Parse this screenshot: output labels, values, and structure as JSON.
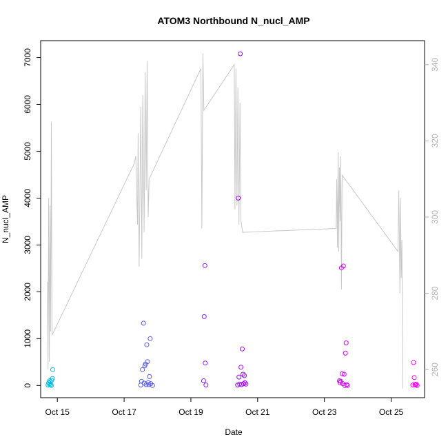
{
  "chart_data": {
    "type": "scatter",
    "title": "ATOM3 Northbound N_nucl_AMP",
    "xlabel": "Date",
    "ylabel": "N_nucl_AMP",
    "xlim": [
      14.5,
      26.0
    ],
    "ylim": [
      -260,
      7360
    ],
    "y_ticks": [
      0,
      1000,
      2000,
      3000,
      4000,
      5000,
      6000,
      7000
    ],
    "x_ticks": [
      {
        "label": "Oct 15",
        "value": 15.0
      },
      {
        "label": "Oct 17",
        "value": 17.0
      },
      {
        "label": "Oct 19",
        "value": 19.0
      },
      {
        "label": "Oct 21",
        "value": 21.0
      },
      {
        "label": "Oct 23",
        "value": 23.0
      },
      {
        "label": "Oct 25",
        "value": 25.0
      }
    ],
    "y2_ticks": [
      260,
      280,
      300,
      320,
      340
    ],
    "y2lim": [
      252.6,
      346.3
    ],
    "grid": false,
    "point_color_scale": [
      "#00bfe8",
      "#9a00ff",
      "#ff00ff"
    ],
    "line_color": "#c8c8c8",
    "points": [
      {
        "x": 14.72,
        "y": 10
      },
      {
        "x": 14.74,
        "y": 60
      },
      {
        "x": 14.76,
        "y": 30
      },
      {
        "x": 14.77,
        "y": 100
      },
      {
        "x": 14.79,
        "y": 80
      },
      {
        "x": 14.8,
        "y": 20
      },
      {
        "x": 14.82,
        "y": 0
      },
      {
        "x": 14.83,
        "y": 110
      },
      {
        "x": 14.85,
        "y": 150
      },
      {
        "x": 14.86,
        "y": 340
      },
      {
        "x": 17.5,
        "y": 10
      },
      {
        "x": 17.52,
        "y": 90
      },
      {
        "x": 17.55,
        "y": 340
      },
      {
        "x": 17.58,
        "y": 1330
      },
      {
        "x": 17.6,
        "y": 50
      },
      {
        "x": 17.62,
        "y": 420
      },
      {
        "x": 17.64,
        "y": 460
      },
      {
        "x": 17.66,
        "y": 20
      },
      {
        "x": 17.68,
        "y": 870
      },
      {
        "x": 17.7,
        "y": 510
      },
      {
        "x": 17.72,
        "y": 60
      },
      {
        "x": 17.74,
        "y": 20
      },
      {
        "x": 17.76,
        "y": 190
      },
      {
        "x": 17.78,
        "y": 1000
      },
      {
        "x": 17.8,
        "y": 40
      },
      {
        "x": 17.85,
        "y": 0
      },
      {
        "x": 19.38,
        "y": 100
      },
      {
        "x": 19.4,
        "y": 1470
      },
      {
        "x": 19.42,
        "y": 2560
      },
      {
        "x": 19.43,
        "y": 480
      },
      {
        "x": 19.45,
        "y": 10
      },
      {
        "x": 20.4,
        "y": 10
      },
      {
        "x": 20.42,
        "y": 4000
      },
      {
        "x": 20.44,
        "y": 180
      },
      {
        "x": 20.46,
        "y": 30
      },
      {
        "x": 20.48,
        "y": 7080
      },
      {
        "x": 20.5,
        "y": 390
      },
      {
        "x": 20.52,
        "y": 20
      },
      {
        "x": 20.54,
        "y": 780
      },
      {
        "x": 20.56,
        "y": 240
      },
      {
        "x": 20.58,
        "y": 40
      },
      {
        "x": 20.6,
        "y": 210
      },
      {
        "x": 20.62,
        "y": 60
      },
      {
        "x": 20.65,
        "y": 30
      },
      {
        "x": 23.45,
        "y": 100
      },
      {
        "x": 23.47,
        "y": 60
      },
      {
        "x": 23.49,
        "y": 90
      },
      {
        "x": 23.51,
        "y": 2510
      },
      {
        "x": 23.53,
        "y": 250
      },
      {
        "x": 23.55,
        "y": 40
      },
      {
        "x": 23.57,
        "y": 2550
      },
      {
        "x": 23.59,
        "y": 240
      },
      {
        "x": 23.61,
        "y": 0
      },
      {
        "x": 23.63,
        "y": 690
      },
      {
        "x": 23.65,
        "y": 910
      },
      {
        "x": 23.67,
        "y": 20
      },
      {
        "x": 23.69,
        "y": 0
      },
      {
        "x": 25.65,
        "y": 10
      },
      {
        "x": 25.67,
        "y": 490
      },
      {
        "x": 25.69,
        "y": 170
      },
      {
        "x": 25.71,
        "y": 20
      },
      {
        "x": 25.73,
        "y": 10
      },
      {
        "x": 25.75,
        "y": 30
      },
      {
        "x": 25.78,
        "y": 0
      }
    ],
    "line_y2": [
      {
        "x": 14.7,
        "y2": 283
      },
      {
        "x": 14.72,
        "y2": 260
      },
      {
        "x": 14.74,
        "y": null,
        "y2": 305
      },
      {
        "x": 14.76,
        "y2": 262
      },
      {
        "x": 14.78,
        "y2": 303
      },
      {
        "x": 14.8,
        "y2": 270
      },
      {
        "x": 14.82,
        "y2": 325
      },
      {
        "x": 14.84,
        "y2": 269
      },
      {
        "x": 17.3,
        "y2": 314
      },
      {
        "x": 17.35,
        "y2": 316
      },
      {
        "x": 17.4,
        "y2": 298
      },
      {
        "x": 17.42,
        "y2": 322
      },
      {
        "x": 17.45,
        "y2": 287
      },
      {
        "x": 17.5,
        "y2": 329
      },
      {
        "x": 17.53,
        "y2": 289
      },
      {
        "x": 17.56,
        "y2": 332
      },
      {
        "x": 17.6,
        "y2": 296
      },
      {
        "x": 17.63,
        "y2": 338
      },
      {
        "x": 17.66,
        "y2": 307
      },
      {
        "x": 17.69,
        "y2": 341
      },
      {
        "x": 17.72,
        "y2": 300
      },
      {
        "x": 17.75,
        "y2": 310
      },
      {
        "x": 19.3,
        "y2": 339
      },
      {
        "x": 19.33,
        "y2": 297
      },
      {
        "x": 19.36,
        "y2": 343
      },
      {
        "x": 19.39,
        "y2": 328
      },
      {
        "x": 20.3,
        "y2": 340
      },
      {
        "x": 20.32,
        "y2": 302
      },
      {
        "x": 20.35,
        "y2": 339
      },
      {
        "x": 20.38,
        "y2": 303
      },
      {
        "x": 20.41,
        "y2": 334
      },
      {
        "x": 20.44,
        "y2": 298
      },
      {
        "x": 20.47,
        "y2": 330
      },
      {
        "x": 20.5,
        "y2": 299
      },
      {
        "x": 20.55,
        "y2": 296
      },
      {
        "x": 23.35,
        "y2": 297
      },
      {
        "x": 23.37,
        "y2": 310
      },
      {
        "x": 23.39,
        "y2": 292
      },
      {
        "x": 23.41,
        "y2": 317
      },
      {
        "x": 23.43,
        "y2": 291
      },
      {
        "x": 23.45,
        "y2": 313
      },
      {
        "x": 23.47,
        "y2": 299
      },
      {
        "x": 23.49,
        "y2": 316
      },
      {
        "x": 23.51,
        "y2": 281
      },
      {
        "x": 23.53,
        "y2": 311
      },
      {
        "x": 25.2,
        "y2": 291
      },
      {
        "x": 25.23,
        "y2": 307
      },
      {
        "x": 25.26,
        "y2": 280
      },
      {
        "x": 25.28,
        "y2": 305
      },
      {
        "x": 25.3,
        "y2": 284
      },
      {
        "x": 25.32,
        "y2": 294
      },
      {
        "x": 25.35,
        "y2": 255
      }
    ]
  }
}
